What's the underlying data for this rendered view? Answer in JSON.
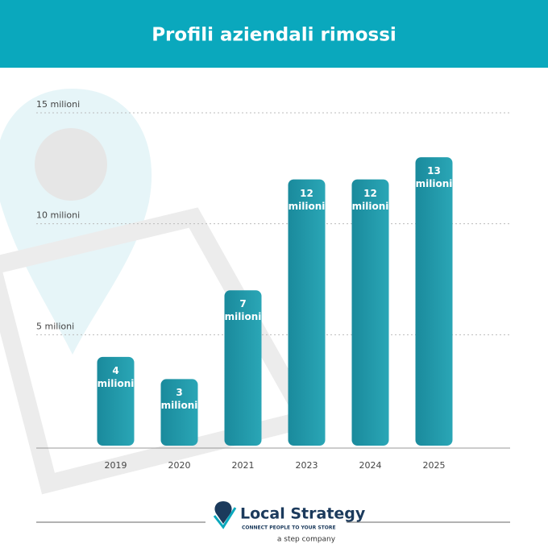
{
  "chart_data": {
    "type": "bar",
    "title": "Profili aziendali rimossi",
    "categories": [
      "2019",
      "2020",
      "2021",
      "2023",
      "2024",
      "2025"
    ],
    "values": [
      4,
      3,
      7,
      12,
      12,
      13
    ],
    "value_labels": [
      "4 milioni",
      "3 milioni",
      "7 milioni",
      "12 milioni",
      "12 milioni",
      "13 milioni"
    ],
    "color": "#1d97a8",
    "ylim": [
      0,
      15
    ],
    "yticks": [
      {
        "value": 5,
        "label": "5 milioni"
      },
      {
        "value": 10,
        "label": "10 milioni"
      },
      {
        "value": 15,
        "label": "15 milioni"
      }
    ],
    "grid": true
  },
  "footer": {
    "brand": "Local Strategy",
    "tagline": "CONNECT PEOPLE TO YOUR STORE",
    "company": "a step company"
  }
}
